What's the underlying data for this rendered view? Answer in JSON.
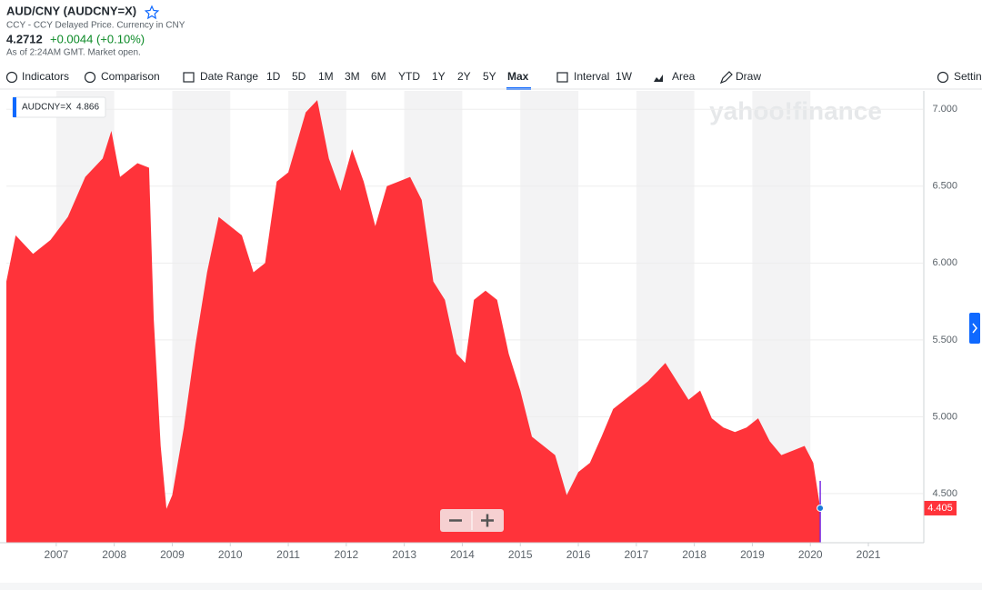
{
  "header": {
    "title": "AUD/CNY (AUDCNY=X)",
    "subtitle": "CCY - CCY Delayed Price. Currency in CNY",
    "price": "4.2712",
    "change": "+0.0044 (+0.10%)",
    "status": "As of 2:24AM GMT. Market open."
  },
  "toolbar": [
    "Indicators",
    "Comparison",
    "Date Range",
    "1D",
    "5D",
    "1M",
    "3M",
    "6M",
    "YTD",
    "1Y",
    "2Y",
    "5Y",
    "Max",
    "Interval",
    "1W",
    "Area",
    "Draw",
    "Settin"
  ],
  "watermark": "yahoo!finance",
  "chart_data": {
    "type": "area",
    "x": [
      2006.14,
      2006.3,
      2006.6,
      2006.9,
      2007.2,
      2007.5,
      2007.8,
      2007.95,
      2008.1,
      2008.4,
      2008.6,
      2008.68,
      2008.8,
      2008.9,
      2009.0,
      2009.2,
      2009.4,
      2009.6,
      2009.8,
      2010.0,
      2010.2,
      2010.4,
      2010.6,
      2010.8,
      2011.0,
      2011.3,
      2011.5,
      2011.7,
      2011.9,
      2012.1,
      2012.3,
      2012.5,
      2012.7,
      2012.9,
      2013.1,
      2013.3,
      2013.5,
      2013.7,
      2013.9,
      2014.05,
      2014.2,
      2014.4,
      2014.6,
      2014.8,
      2015.0,
      2015.2,
      2015.4,
      2015.6,
      2015.8,
      2016.0,
      2016.2,
      2016.4,
      2016.6,
      2016.8,
      2017.0,
      2017.2,
      2017.5,
      2017.7,
      2017.9,
      2018.1,
      2018.3,
      2018.5,
      2018.7,
      2018.9,
      2019.1,
      2019.3,
      2019.5,
      2019.7,
      2019.9,
      2020.05,
      2020.17
    ],
    "series": [
      {
        "name": "AUDCNY=X",
        "color": "#ff333a",
        "legend_value": 4.866,
        "values": [
          5.88,
          6.18,
          6.06,
          6.15,
          6.3,
          6.56,
          6.68,
          6.86,
          6.56,
          6.65,
          6.62,
          5.64,
          4.81,
          4.4,
          4.49,
          4.93,
          5.47,
          5.94,
          6.3,
          6.24,
          6.18,
          5.94,
          6.0,
          6.53,
          6.59,
          6.98,
          7.06,
          6.68,
          6.47,
          6.74,
          6.53,
          6.24,
          6.5,
          6.53,
          6.56,
          6.41,
          5.88,
          5.76,
          5.41,
          5.35,
          5.76,
          5.82,
          5.76,
          5.41,
          5.17,
          4.87,
          4.81,
          4.75,
          4.49,
          4.64,
          4.7,
          4.87,
          5.05,
          5.11,
          5.17,
          5.23,
          5.35,
          5.23,
          5.11,
          5.17,
          4.99,
          4.93,
          4.9,
          4.93,
          4.99,
          4.84,
          4.75,
          4.78,
          4.81,
          4.7,
          4.405
        ]
      }
    ],
    "xlim": [
      2006.14,
      2021.94
    ],
    "xticks": [
      2007,
      2008,
      2009,
      2010,
      2011,
      2012,
      2013,
      2014,
      2015,
      2016,
      2017,
      2018,
      2019,
      2020,
      2021
    ],
    "ylim": [
      4.18,
      7.12
    ],
    "yticks": [
      {
        "value": 4.5,
        "label": "4.500"
      },
      {
        "value": 5,
        "label": "5.000"
      },
      {
        "value": 5.5,
        "label": "5.500"
      },
      {
        "value": 6,
        "label": "6.000"
      },
      {
        "value": 6.5,
        "label": "6.500"
      },
      {
        "value": 7,
        "label": "7.000"
      }
    ],
    "grid": true
  }
}
